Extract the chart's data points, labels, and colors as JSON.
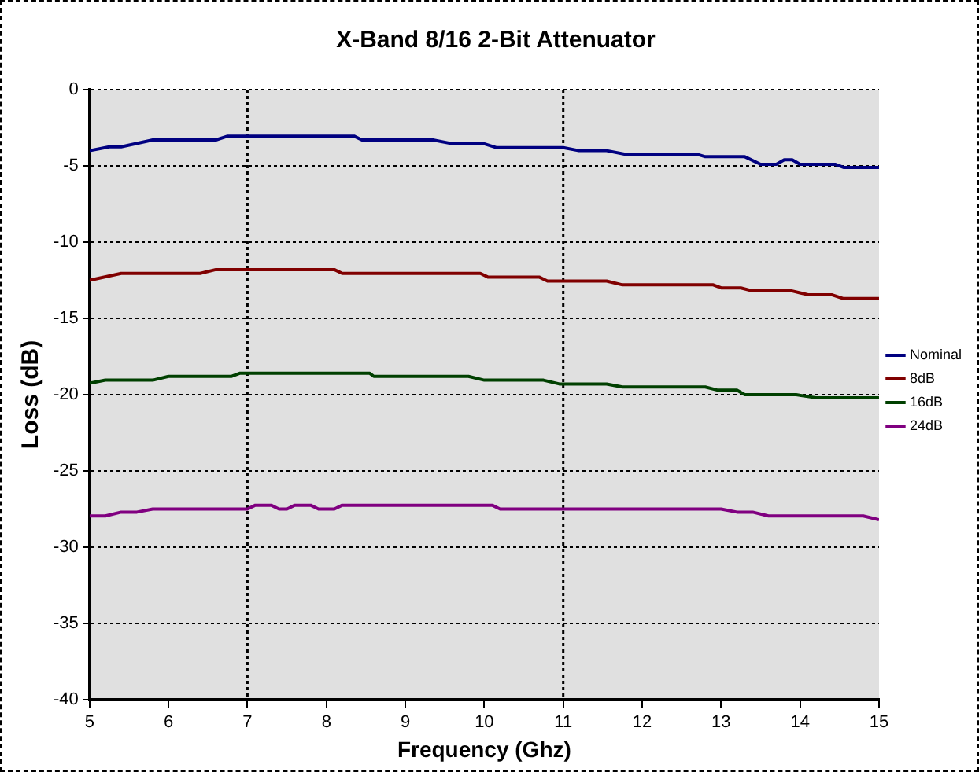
{
  "chart_data": {
    "type": "line",
    "title": "X-Band 8/16 2-Bit Attenuator",
    "xlabel": "Frequency (Ghz)",
    "ylabel": "Loss (dB)",
    "xlim": [
      5,
      15
    ],
    "xticks": [
      5,
      6,
      7,
      8,
      9,
      10,
      11,
      12,
      13,
      14,
      15
    ],
    "ylim": [
      -40,
      0
    ],
    "yticks": [
      -40,
      -35,
      -30,
      -25,
      -20,
      -15,
      -10,
      -5,
      0
    ],
    "grid": "y",
    "legend": "right",
    "marker": "none",
    "line_style": "solid",
    "ref_lines": [
      {
        "axis": "x",
        "value": 7,
        "line_style": "dotted",
        "color": "#000000"
      },
      {
        "axis": "x",
        "value": 11,
        "line_style": "dotted",
        "color": "#000000"
      }
    ],
    "series": [
      {
        "name": "Nominal",
        "color": "#000080",
        "x": [
          5,
          5.25,
          5.4,
          5.8,
          6.6,
          6.75,
          8.35,
          8.45,
          9.35,
          9.6,
          10,
          10.15,
          11,
          11.2,
          11.55,
          11.8,
          12.7,
          12.8,
          13.3,
          13.5,
          13.7,
          13.8,
          13.9,
          14,
          14.45,
          14.55,
          15
        ],
        "values": [
          -4,
          -3.75,
          -3.75,
          -3.3,
          -3.3,
          -3.05,
          -3.05,
          -3.3,
          -3.3,
          -3.55,
          -3.55,
          -3.8,
          -3.8,
          -4,
          -4,
          -4.25,
          -4.25,
          -4.4,
          -4.4,
          -4.9,
          -4.9,
          -4.6,
          -4.6,
          -4.9,
          -4.9,
          -5.1,
          -5.1
        ]
      },
      {
        "name": "8dB",
        "color": "#800000",
        "x": [
          5,
          5.4,
          6.4,
          6.6,
          8.1,
          8.2,
          9.95,
          10.05,
          10.7,
          10.8,
          11.55,
          11.75,
          12.9,
          13,
          13.25,
          13.4,
          13.9,
          14.1,
          14.4,
          14.55,
          15
        ],
        "values": [
          -12.5,
          -12.05,
          -12.05,
          -11.8,
          -11.8,
          -12.05,
          -12.05,
          -12.3,
          -12.3,
          -12.55,
          -12.55,
          -12.8,
          -12.8,
          -13,
          -13,
          -13.2,
          -13.2,
          -13.45,
          -13.45,
          -13.7,
          -13.7
        ]
      },
      {
        "name": "16dB",
        "color": "#004000",
        "x": [
          5,
          5.2,
          5.8,
          6,
          6.8,
          6.9,
          8.55,
          8.6,
          9.8,
          10,
          10.75,
          10.95,
          11.55,
          11.75,
          12.8,
          12.95,
          13.2,
          13.3,
          13.95,
          14.2,
          15
        ],
        "values": [
          -19.25,
          -19.05,
          -19.05,
          -18.8,
          -18.8,
          -18.6,
          -18.6,
          -18.8,
          -18.8,
          -19.05,
          -19.05,
          -19.3,
          -19.3,
          -19.5,
          -19.5,
          -19.7,
          -19.7,
          -20,
          -20,
          -20.2,
          -20.2
        ]
      },
      {
        "name": "24dB",
        "color": "#800080",
        "x": [
          5,
          5.2,
          5.4,
          5.6,
          5.8,
          7,
          7.1,
          7.3,
          7.4,
          7.5,
          7.6,
          7.8,
          7.9,
          8.1,
          8.2,
          10.1,
          10.2,
          13,
          13.2,
          13.4,
          13.6,
          14.8,
          15
        ],
        "values": [
          -27.95,
          -27.95,
          -27.7,
          -27.7,
          -27.5,
          -27.5,
          -27.25,
          -27.25,
          -27.5,
          -27.5,
          -27.25,
          -27.25,
          -27.5,
          -27.5,
          -27.25,
          -27.25,
          -27.5,
          -27.5,
          -27.7,
          -27.7,
          -27.95,
          -27.95,
          -28.2
        ]
      }
    ]
  }
}
